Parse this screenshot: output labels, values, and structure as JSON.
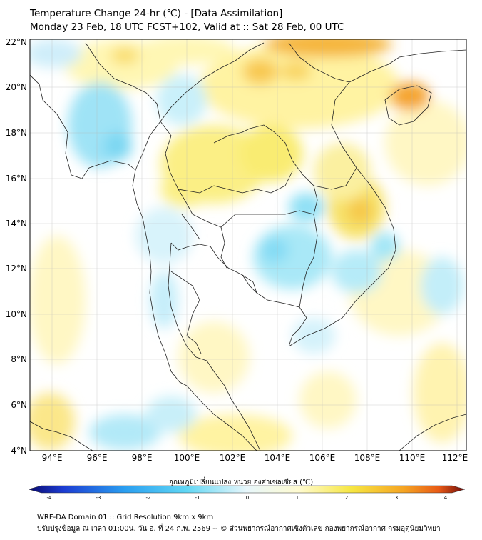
{
  "title": {
    "line1": "Temperature Change 24-hr (℃) - [Data Assimilation]",
    "line2": "Monday 23 Feb, 18 UTC FCST+102, Valid at :: Sat 28 Feb, 00 UTC"
  },
  "axes": {
    "lat_labels": [
      "22°N",
      "20°N",
      "18°N",
      "16°N",
      "14°N",
      "12°N",
      "10°N",
      "8°N",
      "6°N",
      "4°N"
    ],
    "lon_labels": [
      "94°E",
      "96°E",
      "98°E",
      "100°E",
      "102°E",
      "104°E",
      "106°E",
      "108°E",
      "110°E",
      "112°E"
    ]
  },
  "colorbar": {
    "label": "อุณหภูมิเปลี่ยนแปลง หน่วย องศาเซลเซียส (℃)",
    "tick_labels": [
      "-4",
      "-3",
      "-2",
      "-1",
      "0",
      "1",
      "2",
      "3",
      "4"
    ],
    "colors": [
      "#0a0a6e",
      "#1c3cd2",
      "#2a9ef0",
      "#5fd6f4",
      "#e8f7fb",
      "#fffbd0",
      "#f6e642",
      "#f5a423",
      "#e85a16",
      "#6e0a0a"
    ]
  },
  "footer": {
    "line1": "WRF-DA Domain 01 :: Grid Resolution 9km x 9km",
    "line2": "ปรับปรุงข้อมูล ณ เวลา 01:00น. วัน อ. ที่ 24 ก.พ. 2569 -- © ส่วนพยากรณ์อากาศเชิงตัวเลข กองพยากรณ์อากาศ กรมอุตุนิยมวิทยา"
  }
}
